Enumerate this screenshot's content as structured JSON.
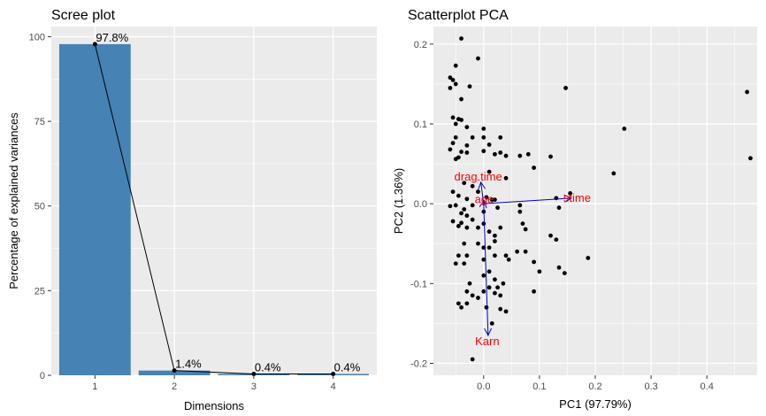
{
  "chart_data": [
    {
      "type": "bar",
      "title": "Scree plot",
      "xlabel": "Dimensions",
      "ylabel": "Percentage of explained variances",
      "categories": [
        "1",
        "2",
        "3",
        "4"
      ],
      "values": [
        97.8,
        1.4,
        0.4,
        0.4
      ],
      "data_labels": [
        "97.8%",
        "1.4%",
        "0.4%",
        "0.4%"
      ],
      "ylim": [
        0,
        103
      ],
      "yticks": [
        0,
        25,
        50,
        75,
        100
      ],
      "bar_color": "#4682b4",
      "line_color": "#000000",
      "grid": true
    },
    {
      "type": "scatter",
      "title": "Scatterplot PCA",
      "xlabel": "PC1 (97.79%)",
      "ylabel": "PC2 (1.36%)",
      "xlim": [
        -0.09,
        0.49
      ],
      "ylim": [
        -0.215,
        0.222
      ],
      "xticks": [
        0.0,
        0.1,
        0.2,
        0.3,
        0.4
      ],
      "xtick_labels": [
        "0.0",
        "0.1",
        "0.2",
        "0.3",
        "0.4"
      ],
      "yticks": [
        -0.2,
        -0.1,
        0.0,
        0.1,
        0.2
      ],
      "ytick_labels": [
        "-0.2",
        "-0.1",
        "0.0",
        "0.1",
        "0.2"
      ],
      "grid": true,
      "point_color": "#000000",
      "points": [
        [
          -0.04,
          0.207
        ],
        [
          -0.05,
          0.173
        ],
        [
          -0.06,
          0.158
        ],
        [
          -0.055,
          0.155
        ],
        [
          -0.05,
          0.15
        ],
        [
          -0.06,
          0.145
        ],
        [
          -0.04,
          0.131
        ],
        [
          -0.025,
          0.147
        ],
        [
          -0.01,
          0.182
        ],
        [
          0.147,
          0.145
        ],
        [
          -0.055,
          0.108
        ],
        [
          -0.045,
          0.106
        ],
        [
          -0.05,
          0.1
        ],
        [
          -0.04,
          0.105
        ],
        [
          -0.03,
          0.096
        ],
        [
          0.0,
          0.094
        ],
        [
          -0.02,
          0.083
        ],
        [
          -0.03,
          0.073
        ],
        [
          -0.05,
          0.083
        ],
        [
          -0.055,
          0.076
        ],
        [
          0.0,
          0.083
        ],
        [
          0.01,
          0.074
        ],
        [
          0.03,
          0.083
        ],
        [
          0.03,
          0.064
        ],
        [
          -0.06,
          0.068
        ],
        [
          -0.05,
          0.056
        ],
        [
          -0.045,
          0.058
        ],
        [
          -0.04,
          0.065
        ],
        [
          -0.03,
          0.064
        ],
        [
          0.0,
          0.066
        ],
        [
          0.02,
          0.062
        ],
        [
          0.04,
          0.06
        ],
        [
          0.065,
          0.06
        ],
        [
          0.08,
          0.062
        ],
        [
          0.12,
          0.059
        ],
        [
          0.09,
          0.045
        ],
        [
          0.04,
          0.032
        ],
        [
          0.01,
          0.04
        ],
        [
          0.252,
          0.094
        ],
        [
          0.472,
          0.14
        ],
        [
          0.478,
          0.057
        ],
        [
          0.233,
          0.038
        ],
        [
          -0.055,
          0.015
        ],
        [
          -0.045,
          0.01
        ],
        [
          -0.035,
          0.026
        ],
        [
          -0.03,
          0.006
        ],
        [
          -0.02,
          -0.002
        ],
        [
          -0.02,
          0.022
        ],
        [
          -0.01,
          0.015
        ],
        [
          0.005,
          0.008
        ],
        [
          0.015,
          0.005
        ],
        [
          0.02,
          0.005
        ],
        [
          0.0,
          -0.01
        ],
        [
          0.025,
          -0.005
        ],
        [
          -0.06,
          -0.003
        ],
        [
          -0.05,
          -0.002
        ],
        [
          -0.035,
          -0.007
        ],
        [
          -0.04,
          -0.012
        ],
        [
          -0.03,
          -0.015
        ],
        [
          -0.055,
          -0.022
        ],
        [
          -0.045,
          -0.028
        ],
        [
          -0.04,
          -0.024
        ],
        [
          -0.03,
          -0.03
        ],
        [
          -0.02,
          -0.02
        ],
        [
          -0.01,
          -0.03
        ],
        [
          0.0,
          -0.025
        ],
        [
          0.01,
          -0.035
        ],
        [
          0.02,
          -0.04
        ],
        [
          0.03,
          -0.03
        ],
        [
          0.07,
          -0.025
        ],
        [
          0.12,
          -0.04
        ],
        [
          0.13,
          -0.045
        ],
        [
          0.135,
          -0.005
        ],
        [
          0.155,
          0.013
        ],
        [
          0.13,
          0.007
        ],
        [
          0.065,
          -0.002
        ],
        [
          0.065,
          -0.01
        ],
        [
          0.075,
          -0.032
        ],
        [
          0.02,
          -0.047
        ],
        [
          0.0,
          -0.055
        ],
        [
          -0.01,
          -0.05
        ],
        [
          -0.035,
          -0.05
        ],
        [
          -0.045,
          -0.065
        ],
        [
          -0.035,
          -0.075
        ],
        [
          -0.05,
          -0.075
        ],
        [
          -0.03,
          -0.065
        ],
        [
          0.0,
          -0.07
        ],
        [
          0.01,
          -0.055
        ],
        [
          0.02,
          -0.065
        ],
        [
          0.04,
          -0.065
        ],
        [
          0.045,
          -0.07
        ],
        [
          0.06,
          -0.06
        ],
        [
          0.075,
          -0.06
        ],
        [
          0.01,
          -0.085
        ],
        [
          0.0,
          -0.09
        ],
        [
          0.02,
          -0.095
        ],
        [
          0.035,
          -0.1
        ],
        [
          0.01,
          -0.105
        ],
        [
          0.0,
          -0.11
        ],
        [
          -0.01,
          -0.118
        ],
        [
          -0.02,
          -0.115
        ],
        [
          -0.045,
          -0.125
        ],
        [
          -0.04,
          -0.13
        ],
        [
          -0.025,
          -0.1
        ],
        [
          -0.03,
          -0.11
        ],
        [
          0.02,
          -0.112
        ],
        [
          0.025,
          -0.105
        ],
        [
          0.03,
          -0.115
        ],
        [
          0.04,
          -0.135
        ],
        [
          0.015,
          -0.15
        ],
        [
          0.005,
          -0.13
        ],
        [
          -0.03,
          -0.125
        ],
        [
          0.03,
          -0.132
        ],
        [
          0.09,
          -0.11
        ],
        [
          0.09,
          -0.073
        ],
        [
          0.1,
          -0.085
        ],
        [
          0.145,
          -0.087
        ],
        [
          0.187,
          -0.068
        ],
        [
          0.135,
          -0.08
        ],
        [
          -0.02,
          -0.195
        ]
      ],
      "vectors": [
        {
          "name": "drag.time",
          "x": -0.005,
          "y": 0.027
        },
        {
          "name": "age",
          "x": 0.001,
          "y": 0.004
        },
        {
          "name": "stime",
          "x": 0.157,
          "y": 0.007
        },
        {
          "name": "Karn",
          "x": 0.008,
          "y": -0.165
        }
      ],
      "vector_color": "#0000cc",
      "vector_label_color": "#ff0000"
    }
  ]
}
